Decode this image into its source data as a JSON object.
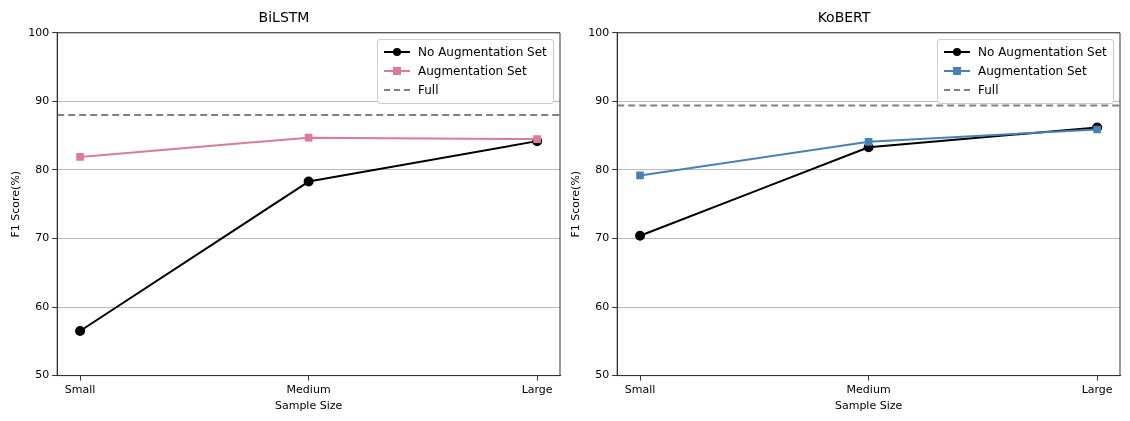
{
  "chart_data": [
    {
      "type": "line",
      "title": "BiLSTM",
      "xlabel": "Sample Size",
      "ylabel": "F1 Score(%)",
      "categories": [
        "Small",
        "Medium",
        "Large"
      ],
      "series": [
        {
          "name": "No Augmentation Set",
          "color": "#000000",
          "marker": "circle",
          "values": [
            56.5,
            78.3,
            84.2
          ]
        },
        {
          "name": "Augmentation Set",
          "color": "#e0789a",
          "marker": "square",
          "values": [
            81.9,
            84.7,
            84.5
          ]
        }
      ],
      "ref_lines": [
        {
          "axis": "y",
          "value": 88.0,
          "label": "Full",
          "color": "#808080",
          "line_style": "dashed"
        }
      ],
      "ylim": [
        50,
        100
      ],
      "yticks": [
        50,
        60,
        70,
        80,
        90,
        100
      ],
      "grid": "y",
      "legend": "top right",
      "line_style": "solid"
    },
    {
      "type": "line",
      "title": "KoBERT",
      "xlabel": "Sample Size",
      "ylabel": "F1 Score(%)",
      "categories": [
        "Small",
        "Medium",
        "Large"
      ],
      "series": [
        {
          "name": "No Augmentation Set",
          "color": "#000000",
          "marker": "circle",
          "values": [
            70.4,
            83.3,
            86.2
          ]
        },
        {
          "name": "Augmentation Set",
          "color": "#4682b4",
          "marker": "square",
          "values": [
            79.2,
            84.1,
            85.9
          ]
        }
      ],
      "ref_lines": [
        {
          "axis": "y",
          "value": 89.4,
          "label": "Full",
          "color": "#808080",
          "line_style": "dashed"
        }
      ],
      "ylim": [
        50,
        100
      ],
      "yticks": [
        50,
        60,
        70,
        80,
        90,
        100
      ],
      "grid": "y",
      "legend": "top right",
      "line_style": "solid"
    }
  ]
}
